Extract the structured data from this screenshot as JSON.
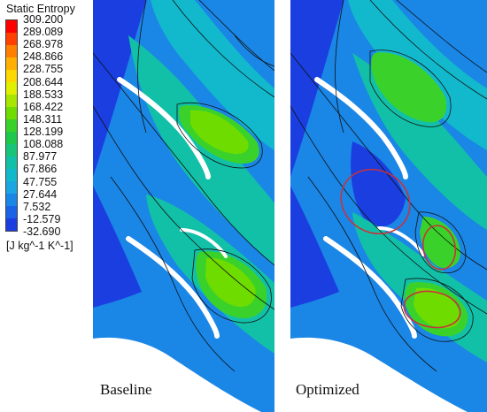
{
  "legend": {
    "title": "Static Entropy",
    "units": "[J kg^-1 K^-1]",
    "ticks": [
      "309.200",
      "289.089",
      "268.978",
      "248.866",
      "228.755",
      "208.644",
      "188.533",
      "168.422",
      "148.311",
      "128.199",
      "108.088",
      "87.977",
      "67.866",
      "47.755",
      "27.644",
      "7.532",
      "-12.579",
      "-32.690"
    ],
    "colors": [
      "#ff0000",
      "#ff4000",
      "#ff8000",
      "#ffb000",
      "#ffd800",
      "#e0f000",
      "#a8e600",
      "#6fdc00",
      "#3ad22a",
      "#1ec84a",
      "#18c47a",
      "#12c0a8",
      "#12b8cc",
      "#1aa6e0",
      "#1a86e6",
      "#1a62e6",
      "#1a3ee0"
    ]
  },
  "panels": {
    "baseline": {
      "caption": "Baseline"
    },
    "optimized": {
      "caption": "Optimized"
    }
  },
  "colors": {
    "low": "#1a3ee0",
    "mid": "#12c0a8",
    "high": "#3ad22a",
    "background": "#1aa6e0",
    "annotation": "#c8323c"
  }
}
